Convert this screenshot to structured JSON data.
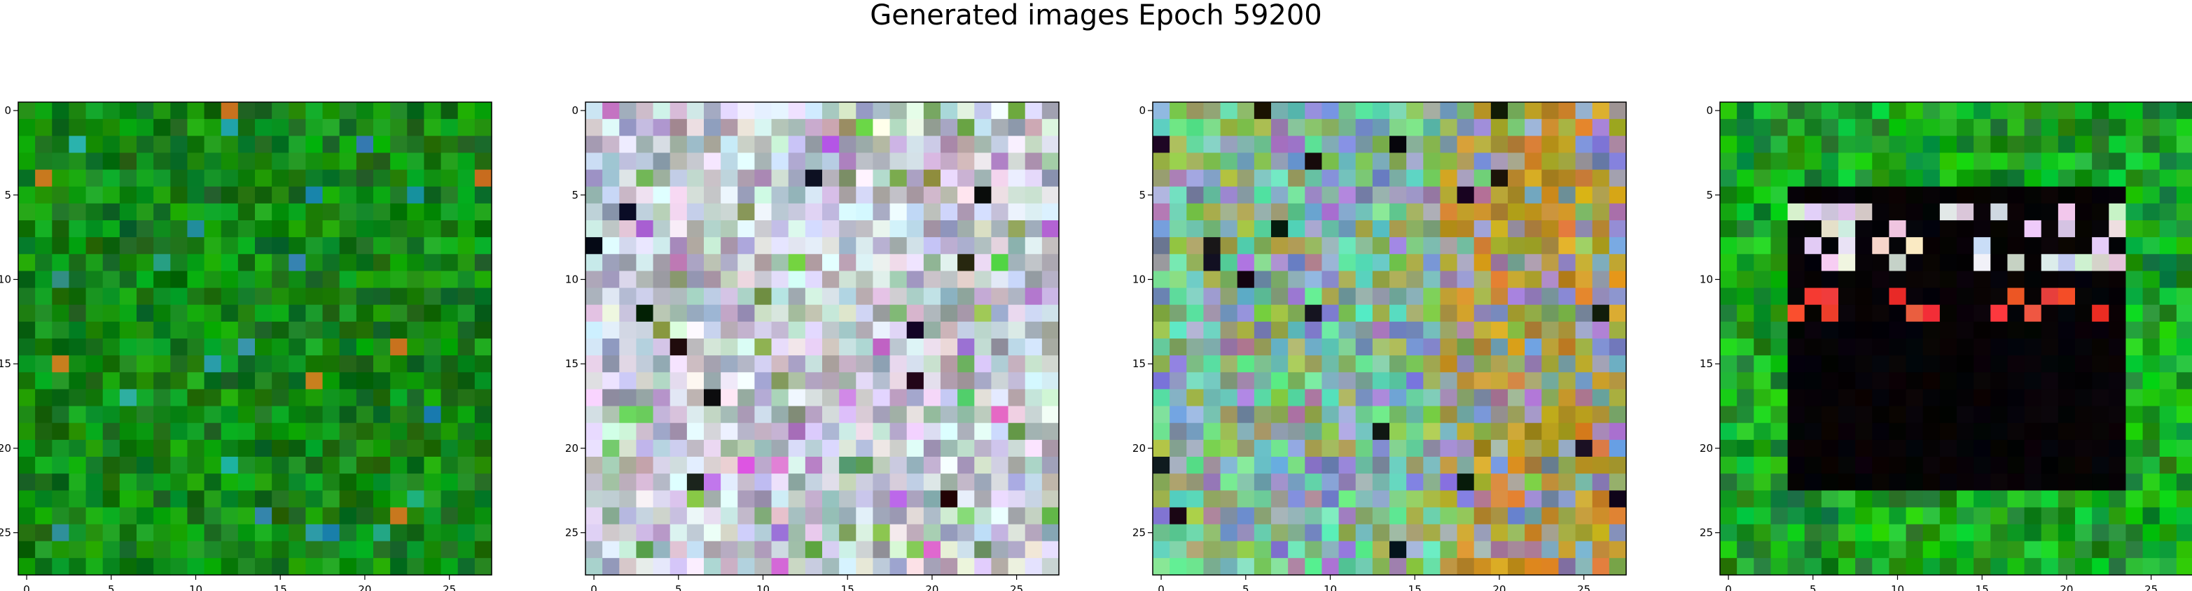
{
  "title": "Generated images Epoch 59200",
  "axes": {
    "x_ticks": [
      "0",
      "5",
      "10",
      "15",
      "20",
      "25"
    ],
    "y_ticks": [
      "0",
      "5",
      "10",
      "15",
      "20",
      "25"
    ],
    "tick_values": [
      0,
      5,
      10,
      15,
      20,
      25
    ],
    "grid_size": 28
  },
  "panels": [
    {
      "name": "generated-image-1",
      "style": "green-noise"
    },
    {
      "name": "generated-image-2",
      "style": "pastel-noise"
    },
    {
      "name": "generated-image-3",
      "style": "mixed-noise"
    },
    {
      "name": "generated-image-4",
      "style": "green-frame-dark-center"
    }
  ]
}
